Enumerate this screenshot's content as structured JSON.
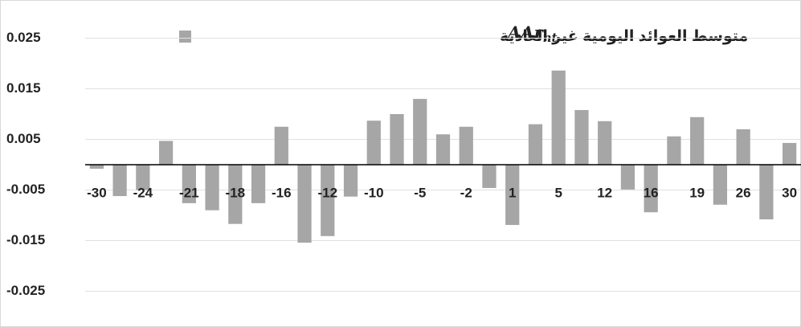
{
  "chart_data": {
    "type": "bar",
    "series": [
      {
        "name": "متوسط العوائد  اليومية غير العادية",
        "color": "#a6a6a6",
        "values": [
          -0.0008,
          -0.0062,
          -0.005,
          0.0047,
          -0.0076,
          -0.009,
          -0.0117,
          -0.0076,
          0.0075,
          -0.0154,
          -0.0141,
          -0.0063,
          0.0087,
          0.01,
          0.013,
          0.006,
          0.0075,
          -0.0046,
          -0.0119,
          0.008,
          0.0186,
          0.0108,
          0.0086,
          -0.0049,
          -0.0094,
          0.0056,
          0.0094,
          -0.0079,
          0.007,
          -0.0108,
          0.0043
        ]
      }
    ],
    "legend_formula": {
      "base": "AAr",
      "sub": "nt"
    },
    "categories": [
      "-30",
      null,
      "-24",
      null,
      "-21",
      null,
      "-18",
      null,
      "-16",
      null,
      "-12",
      null,
      "-10",
      null,
      "-5",
      null,
      "-2",
      null,
      "1",
      null,
      "5",
      null,
      "12",
      null,
      "16",
      null,
      "19",
      null,
      "26",
      null,
      "30"
    ],
    "ylim": [
      -0.03,
      0.03
    ],
    "yticks": [
      0.025,
      0.015,
      0.005,
      -0.005,
      -0.015,
      -0.025
    ],
    "grid": true,
    "legend": "top"
  }
}
